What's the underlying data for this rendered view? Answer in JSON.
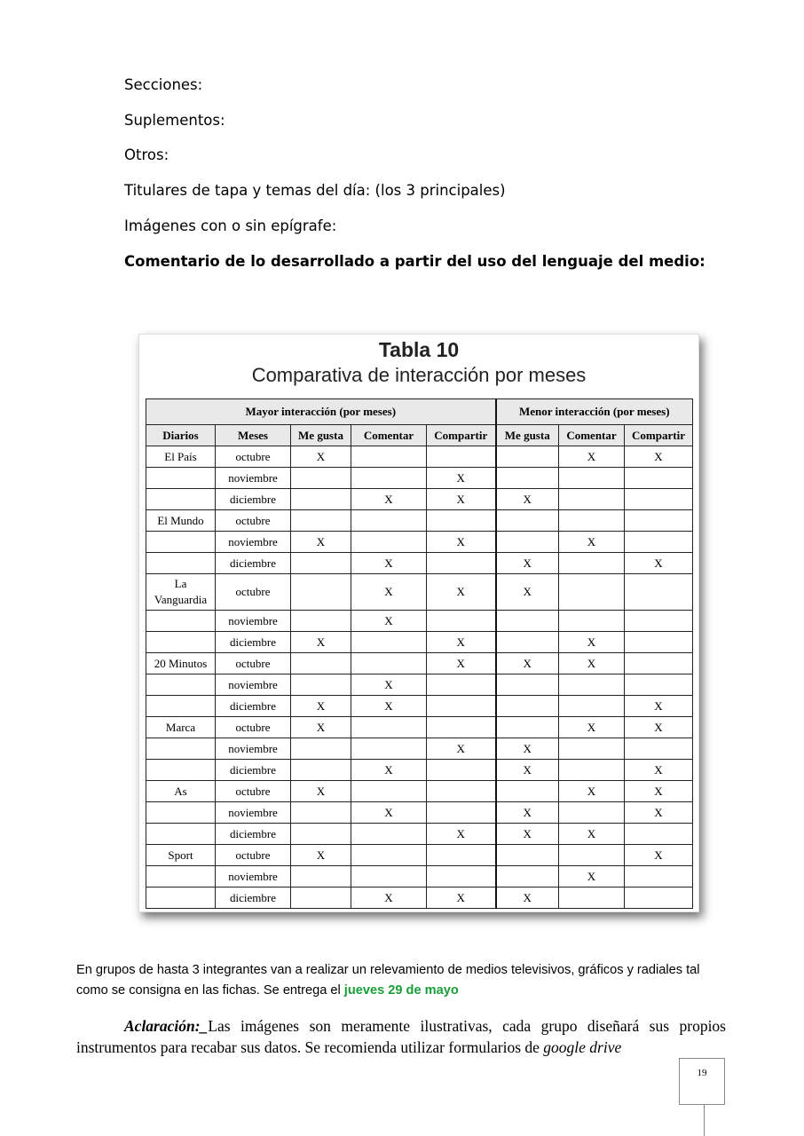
{
  "lines": [
    "Secciones:",
    "Suplementos:",
    "Otros:",
    "Titulares de tapa y temas del día: (los 3 principales)",
    "Imágenes con o sin epígrafe:"
  ],
  "bold_line": "Comentario de lo desarrollado a partir del uso del lenguaje del medio:",
  "figure": {
    "title": "Tabla 10",
    "subtitle": "Comparativa de interacción por meses",
    "group_headers": [
      "Mayor interacción (por meses)",
      "Menor interacción (por meses)"
    ],
    "columns": [
      "Diarios",
      "Meses",
      "Me gusta",
      "Comentar",
      "Compartir",
      "Me gusta",
      "Comentar",
      "Compartir"
    ],
    "rows": [
      [
        "El País",
        "octubre",
        "X",
        "",
        "",
        "",
        "X",
        "X"
      ],
      [
        "",
        "noviembre",
        "",
        "",
        "X",
        "",
        "",
        ""
      ],
      [
        "",
        "diciembre",
        "",
        "X",
        "X",
        "X",
        "",
        ""
      ],
      [
        "El Mundo",
        "octubre",
        "",
        "",
        "",
        "",
        "",
        ""
      ],
      [
        "",
        "noviembre",
        "X",
        "",
        "X",
        "",
        "X",
        ""
      ],
      [
        "",
        "diciembre",
        "",
        "X",
        "",
        "X",
        "",
        "X"
      ],
      [
        "La Vanguardia",
        "octubre",
        "",
        "X",
        "X",
        "X",
        "",
        ""
      ],
      [
        "",
        "noviembre",
        "",
        "X",
        "",
        "",
        "",
        ""
      ],
      [
        "",
        "diciembre",
        "X",
        "",
        "X",
        "",
        "X",
        ""
      ],
      [
        "20 Minutos",
        "octubre",
        "",
        "",
        "X",
        "X",
        "X",
        ""
      ],
      [
        "",
        "noviembre",
        "",
        "X",
        "",
        "",
        "",
        ""
      ],
      [
        "",
        "diciembre",
        "X",
        "X",
        "",
        "",
        "",
        "X"
      ],
      [
        "Marca",
        "octubre",
        "X",
        "",
        "",
        "",
        "X",
        "X"
      ],
      [
        "",
        "noviembre",
        "",
        "",
        "X",
        "X",
        "",
        ""
      ],
      [
        "",
        "diciembre",
        "",
        "X",
        "",
        "X",
        "",
        "X"
      ],
      [
        "As",
        "octubre",
        "X",
        "",
        "",
        "",
        "X",
        "X"
      ],
      [
        "",
        "noviembre",
        "",
        "X",
        "",
        "X",
        "",
        "X"
      ],
      [
        "",
        "diciembre",
        "",
        "",
        "X",
        "X",
        "X",
        ""
      ],
      [
        "Sport",
        "octubre",
        "X",
        "",
        "",
        "",
        "",
        "X"
      ],
      [
        "",
        "noviembre",
        "",
        "",
        "",
        "",
        "X",
        ""
      ],
      [
        "",
        "diciembre",
        "",
        "X",
        "X",
        "X",
        "",
        ""
      ]
    ]
  },
  "paragraph1": {
    "text": "En grupos de hasta 3 integrantes van a realizar un relevamiento de medios televisivos, gráficos y radiales tal como se consigna en las fichas. Se entrega el ",
    "highlight": "jueves 29 de mayo",
    "highlight_color": "#1a9e3a"
  },
  "paragraph2": {
    "lead": "Aclaración:_",
    "text": "Las imágenes son meramente ilustrativas, cada grupo diseñará sus propios instrumentos para recabar sus datos. Se recomienda utilizar formularios de ",
    "emph": "google drive"
  },
  "page_number": "19"
}
